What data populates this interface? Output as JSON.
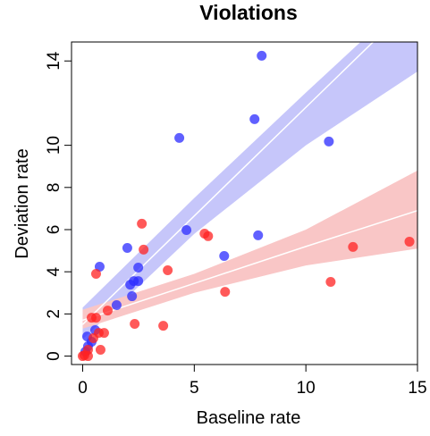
{
  "chart_data": {
    "type": "scatter",
    "title": "Violations",
    "xlabel": "Baseline rate",
    "ylabel": "Deviation rate",
    "xlim": [
      -0.5,
      15
    ],
    "ylim": [
      -0.4,
      14.9
    ],
    "xticks": [
      0,
      5,
      10,
      15
    ],
    "yticks": [
      0,
      2,
      4,
      6,
      8,
      10,
      14
    ],
    "series": [
      {
        "color": "#2b2bff",
        "x": [
          8.02,
          7.7,
          4.33,
          11.03,
          4.65,
          7.86,
          6.34,
          2.0,
          0.76,
          2.49,
          2.49,
          2.29,
          2.13,
          2.21,
          1.52,
          0.2,
          0.4,
          0.24,
          0.56,
          0.12
        ],
        "y": [
          14.25,
          11.24,
          10.35,
          10.18,
          5.98,
          5.73,
          4.75,
          5.13,
          4.24,
          4.2,
          3.56,
          3.56,
          3.39,
          2.84,
          2.42,
          0.93,
          0.68,
          0.47,
          1.23,
          0.21
        ]
      },
      {
        "color": "#ff2222",
        "x": [
          2.65,
          2.73,
          5.46,
          5.62,
          3.81,
          0.6,
          6.38,
          11.11,
          12.11,
          14.64,
          1.12,
          2.33,
          3.61,
          0.6,
          0.4,
          0.72,
          0.96,
          0.48,
          0.8,
          0.24,
          0.08,
          0,
          0.24
        ],
        "y": [
          6.28,
          5.05,
          5.81,
          5.69,
          4.07,
          3.9,
          3.05,
          3.52,
          5.18,
          5.43,
          2.16,
          1.53,
          1.44,
          1.82,
          1.82,
          1.1,
          1.1,
          0.85,
          0.3,
          0.3,
          0.04,
          0,
          0
        ]
      }
    ],
    "fits": [
      {
        "color": "#c6c6fa",
        "x": [
          0,
          5,
          10,
          15
        ],
        "fit": [
          1.5,
          6.65,
          11.8,
          16.95
        ],
        "lower": [
          0.8,
          5.8,
          10,
          13.5
        ],
        "upper": [
          2.3,
          7.5,
          12.5,
          17.4
        ]
      },
      {
        "color": "#f9c6c6",
        "x": [
          0,
          5,
          10,
          15
        ],
        "fit": [
          1.7,
          3.45,
          5.2,
          6.9
        ],
        "lower": [
          1.3,
          3.0,
          4.3,
          5.1
        ],
        "upper": [
          2.2,
          3.9,
          6.0,
          8.8
        ]
      }
    ]
  }
}
